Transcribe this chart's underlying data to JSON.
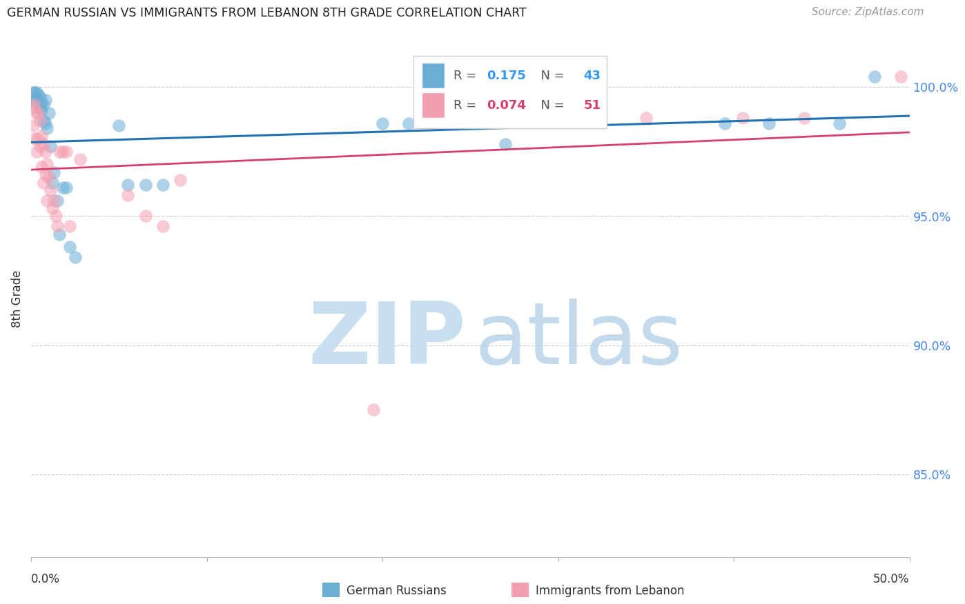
{
  "title": "GERMAN RUSSIAN VS IMMIGRANTS FROM LEBANON 8TH GRADE CORRELATION CHART",
  "source": "Source: ZipAtlas.com",
  "ylabel": "8th Grade",
  "ytick_labels": [
    "85.0%",
    "90.0%",
    "95.0%",
    "100.0%"
  ],
  "ytick_values": [
    0.85,
    0.9,
    0.95,
    1.0
  ],
  "xlim": [
    0.0,
    0.5
  ],
  "ylim": [
    0.818,
    1.018
  ],
  "blue_color": "#6aaed6",
  "pink_color": "#f49faf",
  "blue_line_color": "#2171b5",
  "pink_line_color": "#d63f6b",
  "watermark_zip_color": "#c8dff0",
  "watermark_atlas_color": "#b8d4e8",
  "grid_color": "#cccccc",
  "blue_scatter_x": [
    0.001,
    0.002,
    0.002,
    0.003,
    0.003,
    0.004,
    0.004,
    0.005,
    0.005,
    0.006,
    0.006,
    0.007,
    0.007,
    0.008,
    0.008,
    0.009,
    0.01,
    0.011,
    0.012,
    0.013,
    0.015,
    0.016,
    0.018,
    0.02,
    0.022,
    0.025,
    0.05,
    0.055,
    0.065,
    0.075,
    0.2,
    0.215,
    0.255,
    0.27,
    0.395,
    0.42,
    0.46,
    0.48
  ],
  "blue_scatter_y": [
    0.998,
    0.998,
    0.995,
    0.998,
    0.995,
    0.997,
    0.993,
    0.996,
    0.992,
    0.994,
    0.991,
    0.993,
    0.987,
    0.986,
    0.995,
    0.984,
    0.99,
    0.977,
    0.963,
    0.967,
    0.956,
    0.943,
    0.961,
    0.961,
    0.938,
    0.934,
    0.985,
    0.962,
    0.962,
    0.962,
    0.986,
    0.986,
    0.986,
    0.978,
    0.986,
    0.986,
    0.986,
    1.004
  ],
  "pink_scatter_x": [
    0.001,
    0.001,
    0.002,
    0.002,
    0.003,
    0.003,
    0.004,
    0.004,
    0.005,
    0.005,
    0.006,
    0.006,
    0.007,
    0.007,
    0.008,
    0.008,
    0.009,
    0.009,
    0.01,
    0.011,
    0.012,
    0.013,
    0.014,
    0.015,
    0.016,
    0.018,
    0.02,
    0.022,
    0.028,
    0.055,
    0.065,
    0.075,
    0.085,
    0.195,
    0.275,
    0.35,
    0.405,
    0.44,
    0.495
  ],
  "pink_scatter_y": [
    0.992,
    0.985,
    0.993,
    0.98,
    0.99,
    0.975,
    0.99,
    0.98,
    0.987,
    0.977,
    0.981,
    0.969,
    0.978,
    0.963,
    0.975,
    0.966,
    0.97,
    0.956,
    0.965,
    0.96,
    0.953,
    0.956,
    0.95,
    0.946,
    0.975,
    0.975,
    0.975,
    0.946,
    0.972,
    0.958,
    0.95,
    0.946,
    0.964,
    0.875,
    0.988,
    0.988,
    0.988,
    0.988,
    1.004
  ],
  "legend_r_blue": "0.175",
  "legend_n_blue": "43",
  "legend_r_pink": "0.074",
  "legend_n_pink": "51"
}
